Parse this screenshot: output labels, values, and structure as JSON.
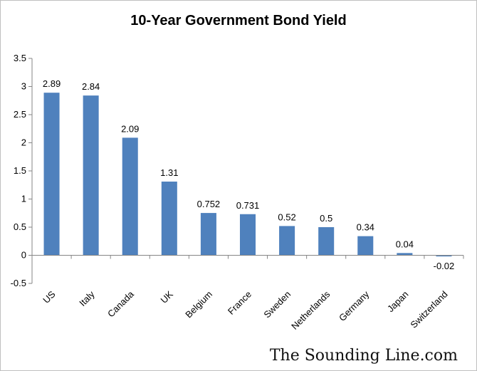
{
  "chart_data": {
    "type": "bar",
    "title": "10-Year Government Bond Yield",
    "categories": [
      "US",
      "Italy",
      "Canada",
      "UK",
      "Belgium",
      "France",
      "Sweden",
      "Netherlands",
      "Germany",
      "Japan",
      "Switzerland"
    ],
    "values": [
      2.89,
      2.84,
      2.09,
      1.31,
      0.752,
      0.731,
      0.52,
      0.5,
      0.34,
      0.04,
      -0.02
    ],
    "data_labels": [
      "2.89",
      "2.84",
      "2.09",
      "1.31",
      "0.752",
      "0.731",
      "0.52",
      "0.5",
      "0.34",
      "0.04",
      "-0.02"
    ],
    "ylim": [
      -0.5,
      3.5
    ],
    "yticks": [
      -0.5,
      0,
      0.5,
      1,
      1.5,
      2,
      2.5,
      3,
      3.5
    ],
    "ytick_labels": [
      "-0.5",
      "0",
      "0.5",
      "1",
      "1.5",
      "2",
      "2.5",
      "3",
      "3.5"
    ],
    "grid": false,
    "legend": "none",
    "bar_color": "#4f81bd"
  },
  "watermark": "The Sounding Line.com"
}
